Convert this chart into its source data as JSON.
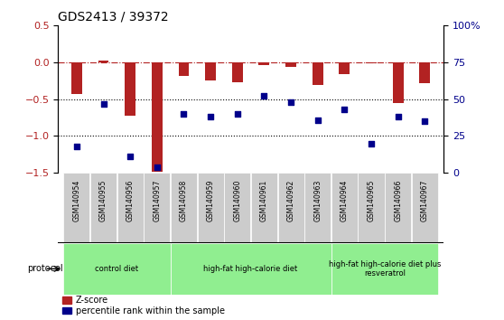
{
  "title": "GDS2413 / 39372",
  "samples": [
    "GSM140954",
    "GSM140955",
    "GSM140956",
    "GSM140957",
    "GSM140958",
    "GSM140959",
    "GSM140960",
    "GSM140961",
    "GSM140962",
    "GSM140963",
    "GSM140964",
    "GSM140965",
    "GSM140966",
    "GSM140967"
  ],
  "zscore": [
    -0.43,
    0.02,
    -0.72,
    -1.48,
    -0.18,
    -0.25,
    -0.27,
    -0.04,
    -0.06,
    -0.31,
    -0.16,
    -0.01,
    -0.55,
    -0.28
  ],
  "percentile": [
    18,
    47,
    11,
    4,
    40,
    38,
    40,
    52,
    48,
    36,
    43,
    20,
    38,
    35
  ],
  "zscore_color": "#b22222",
  "percentile_color": "#00008b",
  "ylim_left": [
    -1.5,
    0.5
  ],
  "ylim_right": [
    0,
    100
  ],
  "yticks_left": [
    0.5,
    0,
    -0.5,
    -1.0,
    -1.5
  ],
  "yticks_right": [
    100,
    75,
    50,
    25,
    0
  ],
  "hline_y": 0,
  "dotted_lines": [
    -0.5,
    -1.0
  ],
  "protocol_groups": [
    {
      "label": "control diet",
      "start": 0,
      "end": 4,
      "color": "#90ee90"
    },
    {
      "label": "high-fat high-calorie diet",
      "start": 4,
      "end": 10,
      "color": "#90ee90"
    },
    {
      "label": "high-fat high-calorie diet plus\nresveratrol",
      "start": 10,
      "end": 14,
      "color": "#90ee90"
    }
  ],
  "protocol_label": "protocol",
  "legend_items": [
    {
      "label": "Z-score",
      "color": "#b22222",
      "marker": "s"
    },
    {
      "label": "percentile rank within the sample",
      "color": "#00008b",
      "marker": "s"
    }
  ],
  "bar_width": 0.4
}
